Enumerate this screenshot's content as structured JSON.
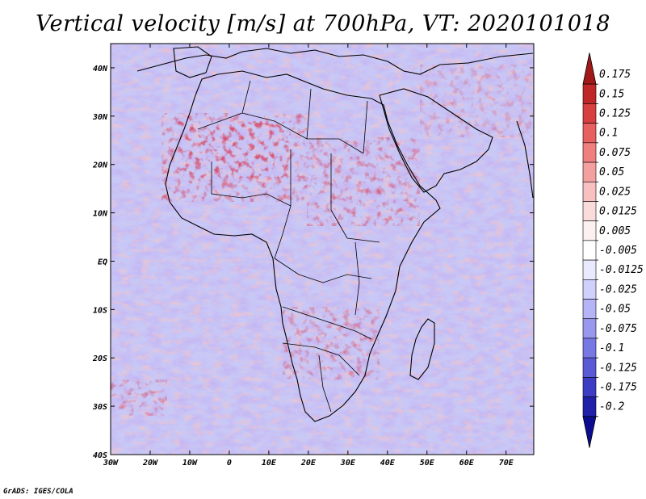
{
  "title": "Vertical velocity [m/s] at 700hPa, VT: 2020101018",
  "credit": "GrADS: IGES/COLA",
  "map": {
    "lon_range": [
      -30,
      77
    ],
    "lat_range": [
      -40,
      45
    ],
    "lon_ticks": [
      {
        "value": -30,
        "label": "30W"
      },
      {
        "value": -20,
        "label": "20W"
      },
      {
        "value": -10,
        "label": "10W"
      },
      {
        "value": 0,
        "label": "0"
      },
      {
        "value": 10,
        "label": "10E"
      },
      {
        "value": 20,
        "label": "20E"
      },
      {
        "value": 30,
        "label": "30E"
      },
      {
        "value": 40,
        "label": "40E"
      },
      {
        "value": 50,
        "label": "50E"
      },
      {
        "value": 60,
        "label": "60E"
      },
      {
        "value": 70,
        "label": "70E"
      }
    ],
    "lat_ticks": [
      {
        "value": 40,
        "label": "40N"
      },
      {
        "value": 30,
        "label": "30N"
      },
      {
        "value": 20,
        "label": "20N"
      },
      {
        "value": 10,
        "label": "10N"
      },
      {
        "value": 0,
        "label": "EQ"
      },
      {
        "value": -10,
        "label": "10S"
      },
      {
        "value": -20,
        "label": "20S"
      },
      {
        "value": -30,
        "label": "30S"
      },
      {
        "value": -40,
        "label": "40S"
      }
    ]
  },
  "colorbar": {
    "labels": [
      "0.175",
      "0.15",
      "0.125",
      "0.1",
      "0.075",
      "0.05",
      "0.025",
      "0.0125",
      "0.005",
      "-0.005",
      "-0.0125",
      "-0.025",
      "-0.05",
      "-0.075",
      "-0.1",
      "-0.125",
      "-0.175",
      "-0.2"
    ],
    "colors": [
      "#a01818",
      "#c02828",
      "#d84040",
      "#e86060",
      "#f08080",
      "#f4a0a0",
      "#f8c0c0",
      "#fbdcdc",
      "#fdf0f0",
      "#ffffff",
      "#eaeaff",
      "#d0d0fc",
      "#b4b4f6",
      "#9898ee",
      "#7878e4",
      "#5a5ad6",
      "#3c3cc4",
      "#2020a8",
      "#0c0c90"
    ]
  }
}
